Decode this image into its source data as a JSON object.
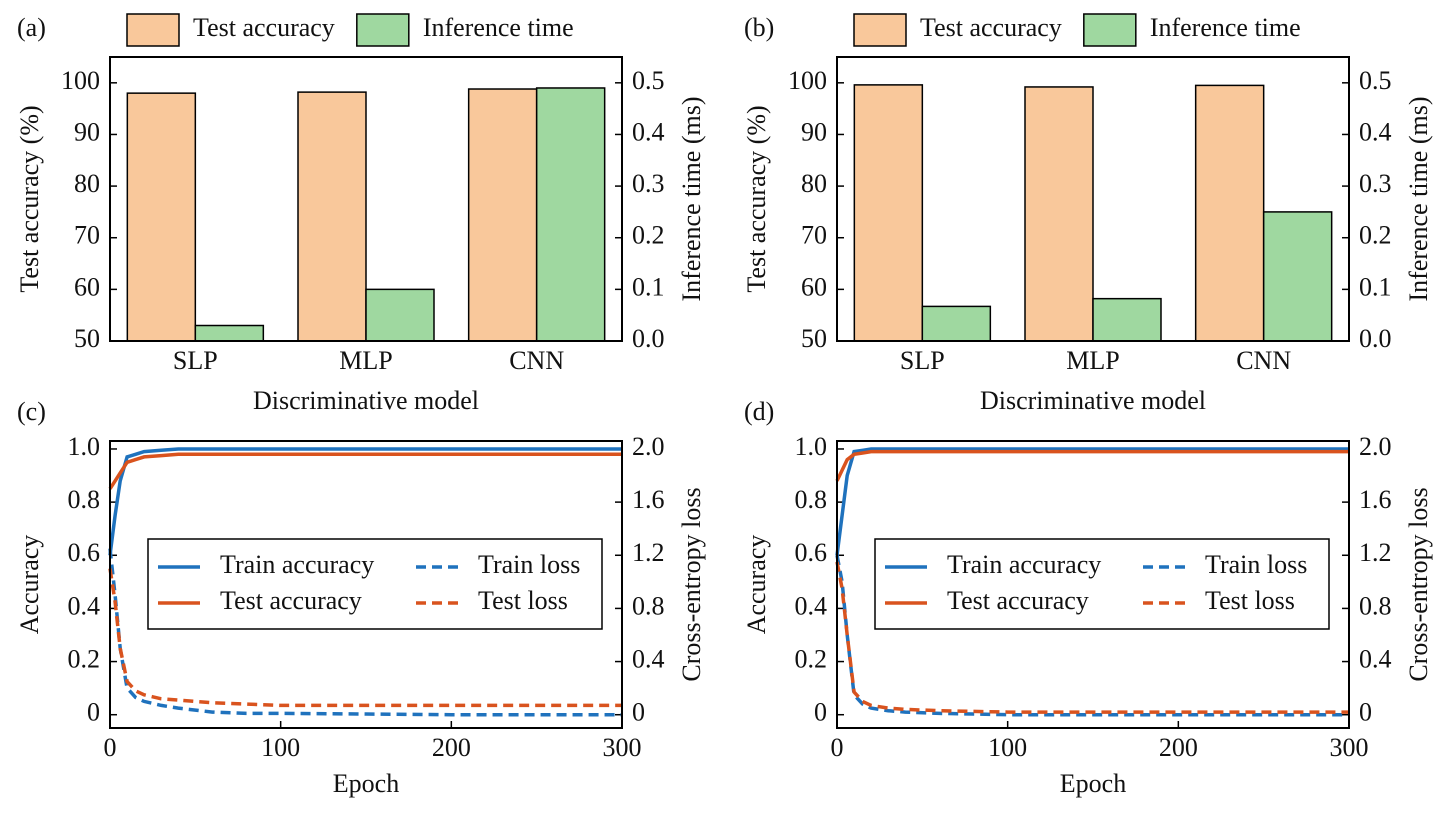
{
  "chart_data": [
    {
      "type": "bar",
      "label": "(a)",
      "xlabel": "Discriminative model",
      "ylabel": "Test accuracy (%)",
      "y2label": "Inference time (ms)",
      "categories": [
        "SLP",
        "MLP",
        "CNN"
      ],
      "series": [
        {
          "name": "Test accuracy",
          "color": "#f9c89b",
          "values": [
            98,
            98.2,
            98.8
          ]
        },
        {
          "name": "Inference time",
          "color": "#9fd8a0",
          "axis": "y2",
          "values": [
            0.03,
            0.1,
            0.49
          ]
        }
      ],
      "ylim": [
        50,
        105
      ],
      "yticks": [
        50,
        60,
        70,
        80,
        90,
        100
      ],
      "y2lim": [
        0,
        0.55
      ],
      "y2ticks": [
        {
          "value": 0,
          "label": "0.0"
        },
        0.1,
        0.2,
        0.3,
        0.4,
        0.5
      ],
      "legend": "top"
    },
    {
      "type": "bar",
      "label": "(b)",
      "xlabel": "Discriminative model",
      "ylabel": "Test accuracy (%)",
      "y2label": "Inference time (ms)",
      "categories": [
        "SLP",
        "MLP",
        "CNN"
      ],
      "series": [
        {
          "name": "Test accuracy",
          "color": "#f9c89b",
          "values": [
            99.6,
            99.2,
            99.5
          ]
        },
        {
          "name": "Inference time",
          "color": "#9fd8a0",
          "axis": "y2",
          "values": [
            0.067,
            0.082,
            0.25
          ]
        }
      ],
      "ylim": [
        50,
        105
      ],
      "yticks": [
        50,
        60,
        70,
        80,
        90,
        100
      ],
      "y2lim": [
        0,
        0.55
      ],
      "y2ticks": [
        {
          "value": 0,
          "label": "0.0"
        },
        0.1,
        0.2,
        0.3,
        0.4,
        0.5
      ],
      "legend": "top"
    },
    {
      "type": "line",
      "label": "(c)",
      "xlabel": "Epoch",
      "ylabel": "Accuracy",
      "y2label": "Cross-entropy loss",
      "x": [
        0,
        3,
        6,
        10,
        15,
        20,
        30,
        40,
        60,
        80,
        100,
        150,
        200,
        250,
        300
      ],
      "series": [
        {
          "name": "Train accuracy",
          "color": "#1f72bd",
          "linestyle": "solid",
          "values": [
            0.6,
            0.75,
            0.88,
            0.97,
            0.98,
            0.99,
            0.995,
            1.0,
            1.0,
            1.0,
            1.0,
            1.0,
            1.0,
            1.0,
            1.0
          ]
        },
        {
          "name": "Test accuracy",
          "color": "#d9531e",
          "linestyle": "solid",
          "values": [
            0.85,
            0.88,
            0.91,
            0.95,
            0.96,
            0.97,
            0.975,
            0.98,
            0.98,
            0.98,
            0.98,
            0.98,
            0.98,
            0.98,
            0.98
          ]
        },
        {
          "name": "Train loss",
          "color": "#1f72bd",
          "linestyle": "dashed",
          "axis": "y2",
          "values": [
            1.25,
            0.9,
            0.5,
            0.2,
            0.13,
            0.1,
            0.07,
            0.05,
            0.02,
            0.01,
            0.01,
            0.005,
            0.0,
            0.0,
            0.0
          ]
        },
        {
          "name": "Test loss",
          "color": "#d9531e",
          "linestyle": "dashed",
          "axis": "y2",
          "values": [
            1.1,
            0.85,
            0.5,
            0.25,
            0.18,
            0.15,
            0.12,
            0.11,
            0.09,
            0.08,
            0.07,
            0.07,
            0.07,
            0.07,
            0.07
          ]
        }
      ],
      "xlim": [
        0,
        300
      ],
      "xticks": [
        0,
        100,
        200,
        300
      ],
      "ylim": [
        -0.05,
        1.03
      ],
      "yticks": [
        0,
        0.2,
        0.4,
        0.6,
        0.8,
        {
          "value": 1,
          "label": "1.0"
        }
      ],
      "y2lim": [
        -0.1,
        2.06
      ],
      "y2ticks": [
        0,
        0.4,
        0.8,
        1.2,
        1.6,
        {
          "value": 2,
          "label": "2.0"
        }
      ],
      "legend": "center"
    },
    {
      "type": "line",
      "label": "(d)",
      "xlabel": "Epoch",
      "ylabel": "Accuracy",
      "y2label": "Cross-entropy loss",
      "x": [
        0,
        3,
        6,
        10,
        15,
        20,
        30,
        40,
        60,
        80,
        100,
        150,
        200,
        250,
        300
      ],
      "series": [
        {
          "name": "Train accuracy",
          "color": "#1f72bd",
          "linestyle": "solid",
          "values": [
            0.6,
            0.75,
            0.9,
            0.99,
            0.995,
            1.0,
            1.0,
            1.0,
            1.0,
            1.0,
            1.0,
            1.0,
            1.0,
            1.0,
            1.0
          ]
        },
        {
          "name": "Test accuracy",
          "color": "#d9531e",
          "linestyle": "solid",
          "values": [
            0.88,
            0.92,
            0.96,
            0.98,
            0.985,
            0.99,
            0.99,
            0.99,
            0.99,
            0.99,
            0.99,
            0.99,
            0.99,
            0.99,
            0.99
          ]
        },
        {
          "name": "Train loss",
          "color": "#1f72bd",
          "linestyle": "dashed",
          "axis": "y2",
          "values": [
            1.2,
            1.0,
            0.6,
            0.15,
            0.08,
            0.05,
            0.03,
            0.02,
            0.01,
            0.005,
            0.0,
            0.0,
            0.0,
            0.0,
            0.0
          ]
        },
        {
          "name": "Test loss",
          "color": "#d9531e",
          "linestyle": "dashed",
          "axis": "y2",
          "values": [
            1.15,
            0.95,
            0.6,
            0.17,
            0.1,
            0.07,
            0.05,
            0.04,
            0.03,
            0.025,
            0.02,
            0.02,
            0.02,
            0.02,
            0.02
          ]
        }
      ],
      "xlim": [
        0,
        300
      ],
      "xticks": [
        0,
        100,
        200,
        300
      ],
      "ylim": [
        -0.05,
        1.03
      ],
      "yticks": [
        0,
        0.2,
        0.4,
        0.6,
        0.8,
        {
          "value": 1,
          "label": "1.0"
        }
      ],
      "y2lim": [
        -0.1,
        2.06
      ],
      "y2ticks": [
        0,
        0.4,
        0.8,
        1.2,
        1.6,
        {
          "value": 2,
          "label": "2.0"
        }
      ],
      "legend": "center"
    }
  ]
}
